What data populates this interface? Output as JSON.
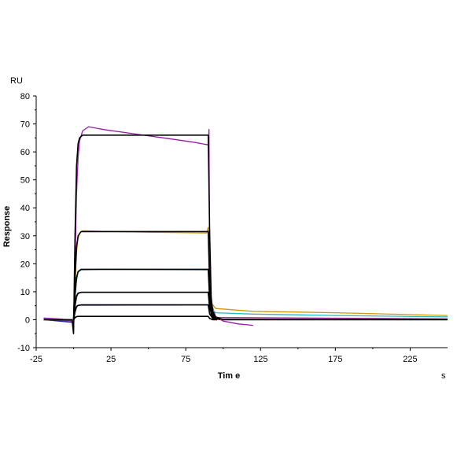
{
  "chart_data": {
    "type": "line",
    "title": "",
    "xlabel": "Tim e",
    "ylabel": "Response",
    "y_unit": "RU",
    "x_unit": "s",
    "xlim": [
      -25,
      250
    ],
    "ylim": [
      -10,
      80
    ],
    "x_ticks": [
      -25,
      25,
      75,
      125,
      175,
      225
    ],
    "y_ticks": [
      -10,
      0,
      10,
      20,
      30,
      40,
      50,
      60,
      70,
      80
    ],
    "grid": false,
    "legend": "none",
    "series": [
      {
        "color": "#9a1aa8",
        "level": 66,
        "data": [
          [
            -20,
            0.6
          ],
          [
            -10,
            0.3
          ],
          [
            -4,
            0
          ],
          [
            0,
            -1
          ],
          [
            1,
            20
          ],
          [
            2,
            45
          ],
          [
            3,
            58
          ],
          [
            4,
            64
          ],
          [
            6,
            67.5
          ],
          [
            10,
            69
          ],
          [
            20,
            68
          ],
          [
            40,
            66.5
          ],
          [
            60,
            65
          ],
          [
            80,
            63.5
          ],
          [
            90,
            62.5
          ],
          [
            90.5,
            68
          ],
          [
            91,
            20
          ],
          [
            92,
            6
          ],
          [
            95,
            1
          ],
          [
            100,
            -0.5
          ],
          [
            110,
            -1.5
          ],
          [
            120,
            -2
          ]
        ]
      },
      {
        "color": "#c99a0e",
        "level": 31.5,
        "data": [
          [
            -20,
            0.2
          ],
          [
            -4,
            0
          ],
          [
            0,
            -1
          ],
          [
            1,
            12
          ],
          [
            2,
            24
          ],
          [
            3,
            29
          ],
          [
            4,
            31
          ],
          [
            6,
            31.8
          ],
          [
            20,
            31.6
          ],
          [
            50,
            31.3
          ],
          [
            89,
            31
          ],
          [
            90,
            33
          ],
          [
            91,
            12
          ],
          [
            92,
            6
          ],
          [
            95,
            4
          ],
          [
            120,
            3
          ],
          [
            175,
            2.5
          ],
          [
            250,
            1.5
          ]
        ]
      },
      {
        "color": "#2ab8c0",
        "level": 18,
        "data": [
          [
            -20,
            0.1
          ],
          [
            -4,
            0
          ],
          [
            0,
            -0.5
          ],
          [
            1,
            8
          ],
          [
            2,
            14
          ],
          [
            3,
            17
          ],
          [
            5,
            17.8
          ],
          [
            20,
            18
          ],
          [
            60,
            17.9
          ],
          [
            89,
            17.8
          ],
          [
            90,
            18
          ],
          [
            91,
            8
          ],
          [
            92,
            4
          ],
          [
            95,
            2.5
          ],
          [
            120,
            2
          ],
          [
            175,
            1.5
          ],
          [
            250,
            1
          ]
        ]
      },
      {
        "color": "#8a1a8a",
        "level": 9.8,
        "data": [
          [
            -20,
            0
          ],
          [
            0,
            -0.5
          ],
          [
            1,
            5
          ],
          [
            2,
            8
          ],
          [
            3,
            9.3
          ],
          [
            5,
            9.8
          ],
          [
            89,
            9.8
          ],
          [
            90,
            9.8
          ],
          [
            91,
            4
          ],
          [
            93,
            1.5
          ],
          [
            96,
            0.8
          ],
          [
            250,
            0.3
          ]
        ]
      },
      {
        "color": "#1a1ab0",
        "level": 5.3,
        "data": [
          [
            -20,
            0
          ],
          [
            0,
            -1
          ],
          [
            1,
            3
          ],
          [
            2,
            4.8
          ],
          [
            3,
            5.2
          ],
          [
            89,
            5.3
          ],
          [
            90,
            5.3
          ],
          [
            91,
            2
          ],
          [
            93,
            0.6
          ],
          [
            96,
            0.2
          ],
          [
            250,
            0
          ]
        ]
      },
      {
        "color": "#c01818",
        "level": 1.2,
        "data": [
          [
            -20,
            0
          ],
          [
            0,
            -0.3
          ],
          [
            1,
            0.8
          ],
          [
            2,
            1.1
          ],
          [
            3,
            1.2
          ],
          [
            89,
            1.2
          ],
          [
            90,
            1.2
          ],
          [
            91,
            0.5
          ],
          [
            93,
            0.1
          ],
          [
            250,
            0
          ]
        ]
      },
      {
        "color": "#000000",
        "level": 66,
        "data": [
          [
            -20,
            0
          ],
          [
            -1,
            0
          ],
          [
            0,
            -5
          ],
          [
            1,
            30
          ],
          [
            2,
            55
          ],
          [
            3,
            63
          ],
          [
            4,
            65
          ],
          [
            6,
            66
          ],
          [
            89,
            66
          ],
          [
            90,
            66
          ],
          [
            91,
            30
          ],
          [
            92,
            8
          ],
          [
            93,
            3
          ],
          [
            95,
            1
          ],
          [
            100,
            0
          ],
          [
            250,
            0
          ]
        ]
      },
      {
        "color": "#000000",
        "level": 31.5,
        "data": [
          [
            0,
            0
          ],
          [
            1,
            15
          ],
          [
            2,
            26
          ],
          [
            3,
            30
          ],
          [
            5,
            31.5
          ],
          [
            89,
            31.5
          ],
          [
            90,
            31.5
          ],
          [
            91,
            12
          ],
          [
            92,
            4
          ],
          [
            94,
            1
          ],
          [
            98,
            0
          ]
        ]
      },
      {
        "color": "#000000",
        "level": 18,
        "data": [
          [
            0,
            0
          ],
          [
            1,
            9
          ],
          [
            2,
            15
          ],
          [
            3,
            17.2
          ],
          [
            5,
            18
          ],
          [
            89,
            18
          ],
          [
            90,
            18
          ],
          [
            91,
            7
          ],
          [
            92,
            2
          ],
          [
            95,
            0
          ]
        ]
      },
      {
        "color": "#000000",
        "level": 9.8,
        "data": [
          [
            0,
            0
          ],
          [
            1,
            5
          ],
          [
            2,
            8.5
          ],
          [
            3,
            9.5
          ],
          [
            5,
            9.8
          ],
          [
            89,
            9.8
          ],
          [
            90,
            9.8
          ],
          [
            91,
            4
          ],
          [
            93,
            1
          ],
          [
            96,
            0
          ]
        ]
      },
      {
        "color": "#000000",
        "level": 5.3,
        "data": [
          [
            0,
            0
          ],
          [
            1,
            2.8
          ],
          [
            2,
            4.6
          ],
          [
            3,
            5.1
          ],
          [
            5,
            5.3
          ],
          [
            89,
            5.3
          ],
          [
            90,
            5.3
          ],
          [
            91,
            2
          ],
          [
            93,
            0.5
          ],
          [
            96,
            0
          ]
        ]
      },
      {
        "color": "#000000",
        "level": 1.2,
        "data": [
          [
            0,
            0
          ],
          [
            1,
            0.7
          ],
          [
            2,
            1.1
          ],
          [
            4,
            1.2
          ],
          [
            89,
            1.2
          ],
          [
            90,
            1.2
          ],
          [
            91,
            0.4
          ],
          [
            93,
            0
          ],
          [
            96,
            0
          ]
        ]
      }
    ]
  }
}
